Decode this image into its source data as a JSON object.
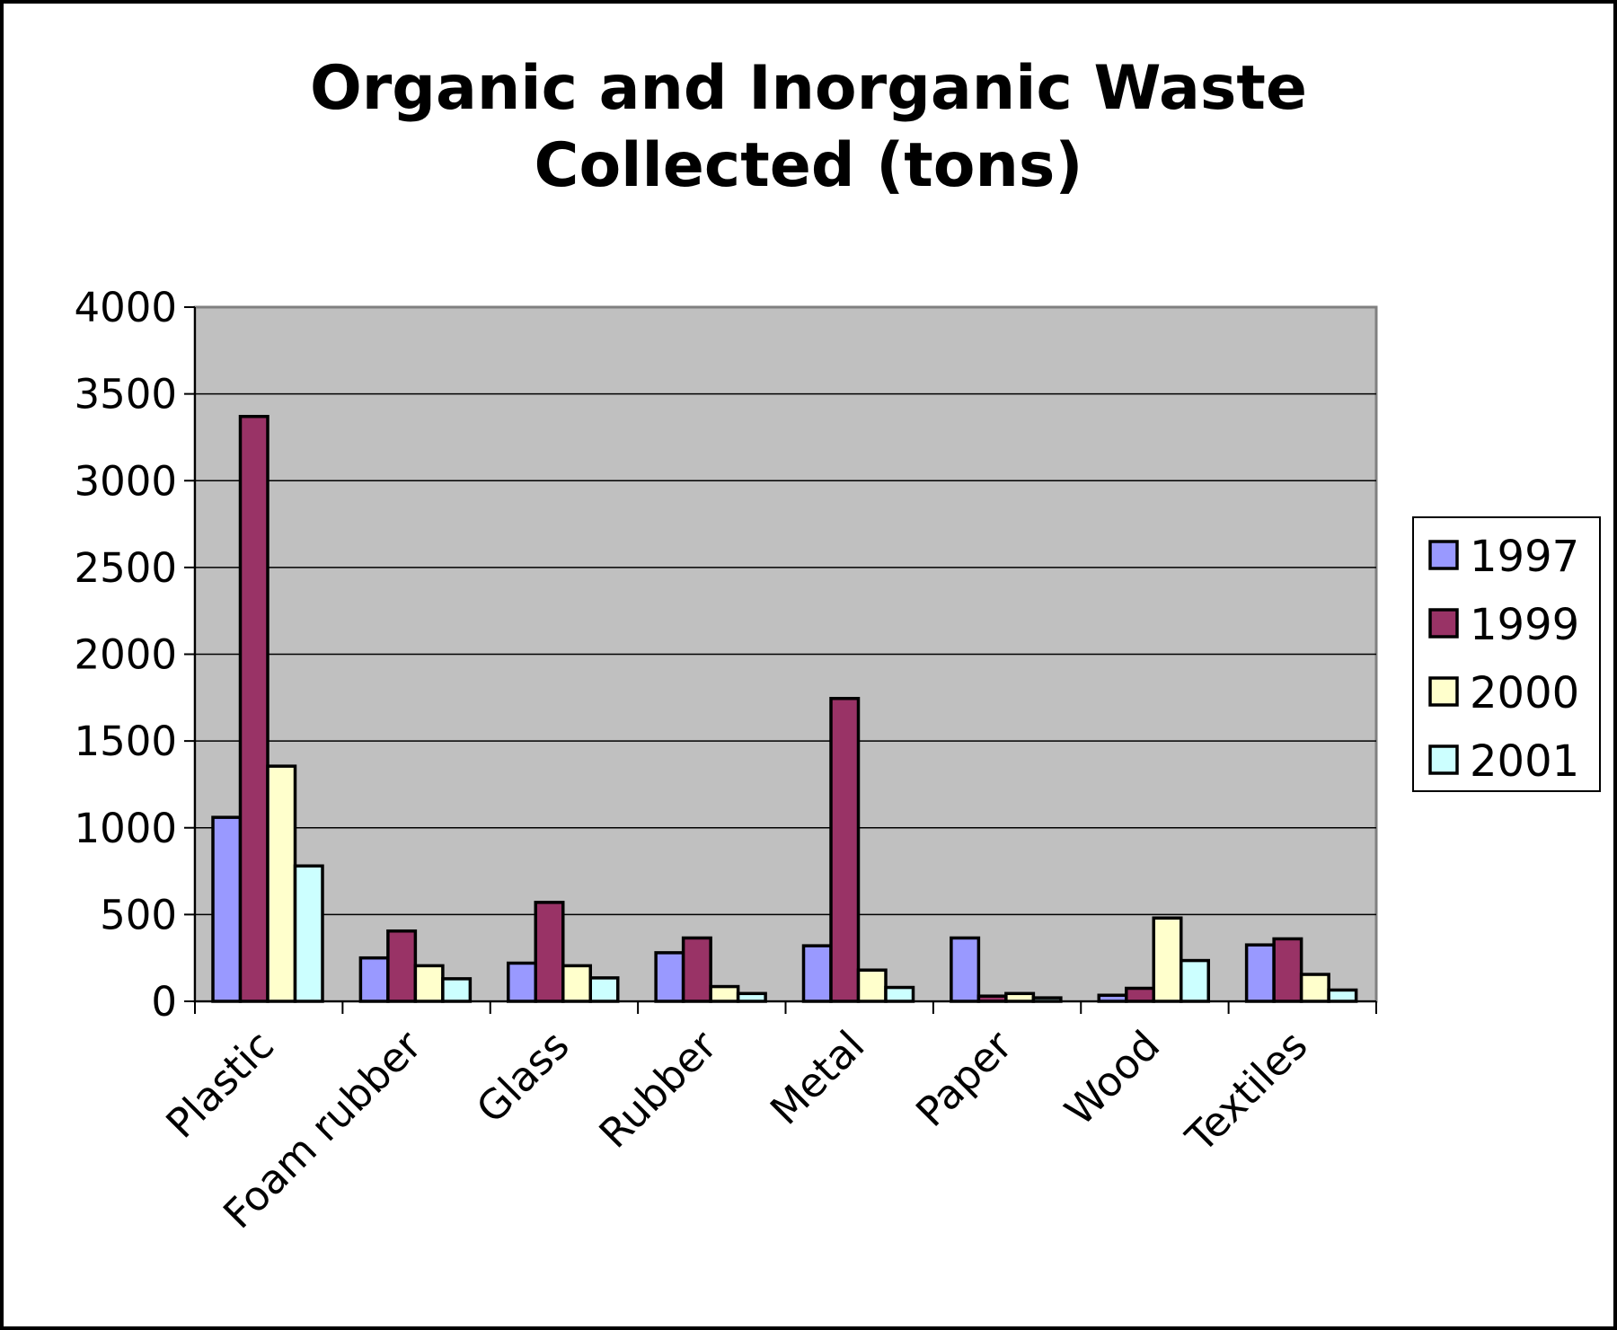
{
  "chart_data": {
    "type": "bar",
    "title_lines": [
      "Organic and Inorganic Waste",
      "Collected (tons)"
    ],
    "xlabel": "",
    "ylabel": "",
    "categories": [
      "Plastic",
      "Foam rubber",
      "Glass",
      "Rubber",
      "Metal",
      "Paper",
      "Wood",
      "Textiles"
    ],
    "series": [
      {
        "name": "1997",
        "color": "#9999ff",
        "values": [
          1060,
          250,
          220,
          280,
          320,
          365,
          35,
          325
        ]
      },
      {
        "name": "1999",
        "color": "#993366",
        "values": [
          3370,
          405,
          570,
          365,
          1745,
          30,
          75,
          360
        ]
      },
      {
        "name": "2000",
        "color": "#ffffcc",
        "values": [
          1355,
          205,
          205,
          85,
          180,
          45,
          480,
          155
        ]
      },
      {
        "name": "2001",
        "color": "#ccffff",
        "values": [
          780,
          130,
          135,
          45,
          80,
          20,
          235,
          65
        ]
      }
    ],
    "ylim": [
      0,
      4000
    ],
    "yticks": [
      "0",
      "500",
      "1000",
      "1500",
      "2000",
      "2500",
      "3000",
      "3500",
      "4000"
    ],
    "plot_background": "#c0c0c0",
    "grid": true,
    "legend_position": "right"
  }
}
